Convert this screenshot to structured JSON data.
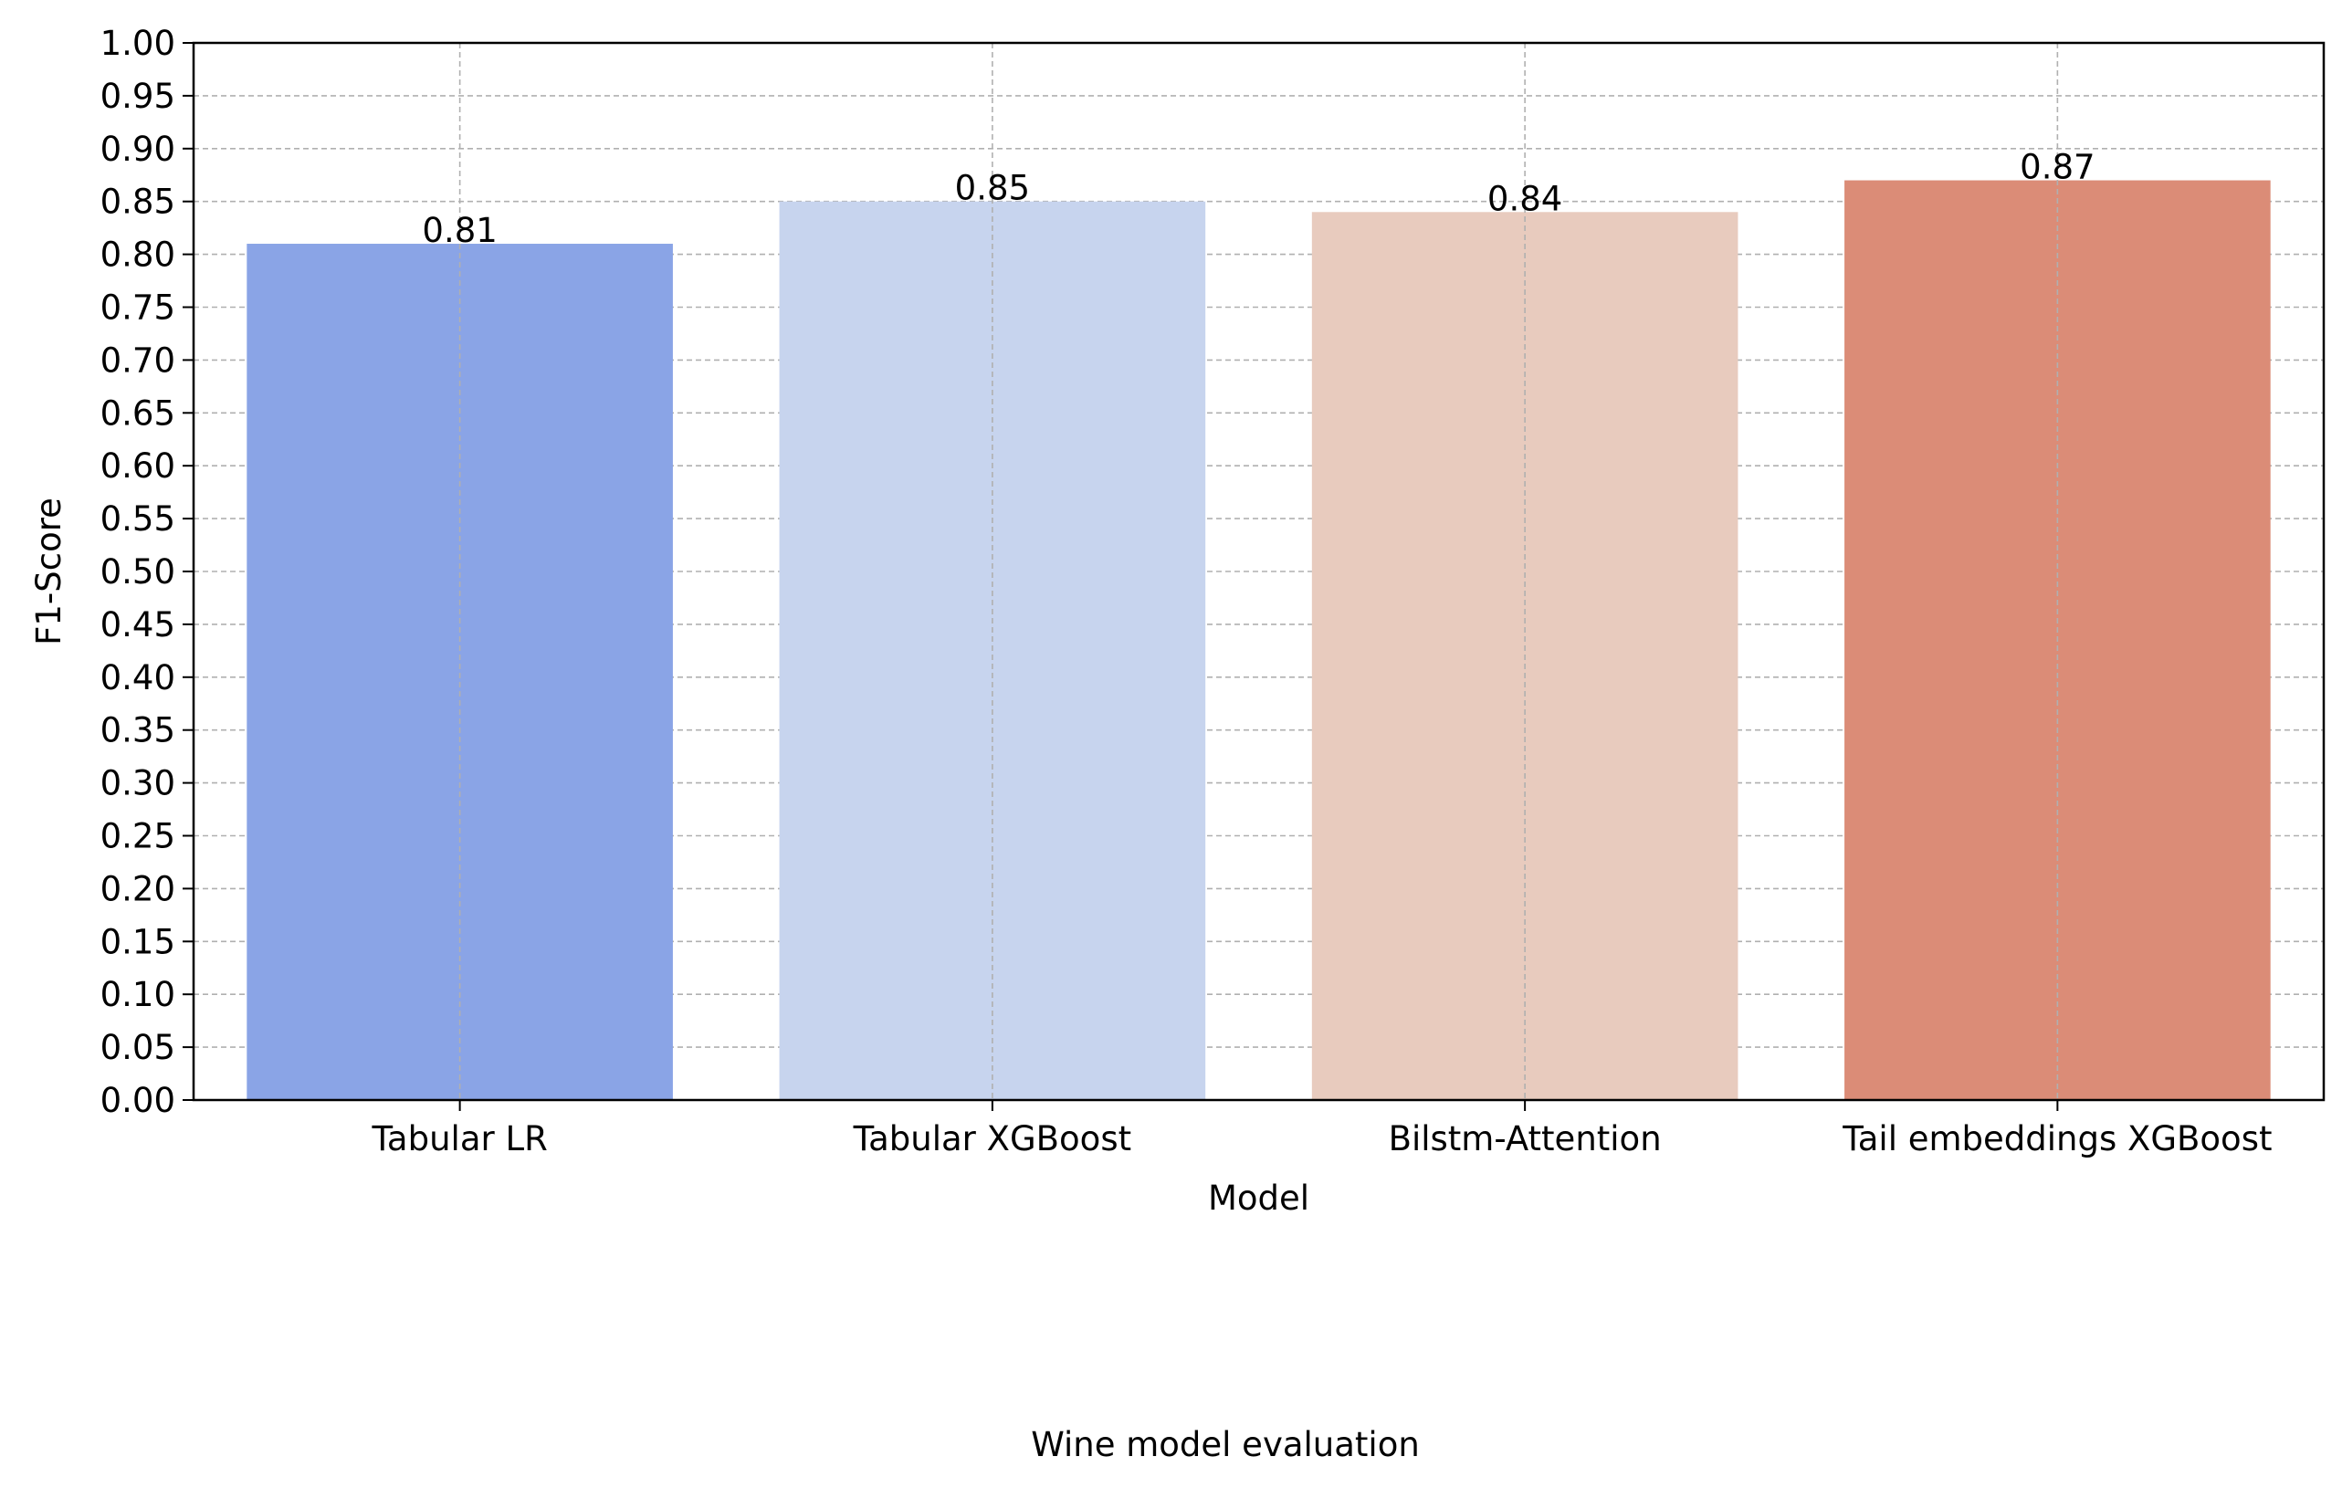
{
  "chart_data": {
    "type": "bar",
    "title": "",
    "caption": "Wine model evaluation",
    "xlabel": "Model",
    "ylabel": "F1-Score",
    "categories": [
      "Tabular LR",
      "Tabular XGBoost",
      "Bilstm-Attention",
      "Tail embeddings XGBoost"
    ],
    "values": [
      0.81,
      0.85,
      0.84,
      0.87
    ],
    "data_labels": [
      "0.81",
      "0.85",
      "0.84",
      "0.87"
    ],
    "colors": [
      "#8aa4e6",
      "#c7d4ee",
      "#e8cbbe",
      "#db8c77"
    ],
    "ylim": [
      0,
      1.0
    ],
    "yticks": [
      0.0,
      0.05,
      0.1,
      0.15,
      0.2,
      0.25,
      0.3,
      0.35,
      0.4,
      0.45,
      0.5,
      0.55,
      0.6,
      0.65,
      0.7,
      0.75,
      0.8,
      0.85,
      0.9,
      0.95,
      1.0
    ],
    "ytick_labels": [
      "0.00",
      "0.05",
      "0.10",
      "0.15",
      "0.20",
      "0.25",
      "0.30",
      "0.35",
      "0.40",
      "0.45",
      "0.50",
      "0.55",
      "0.60",
      "0.65",
      "0.70",
      "0.75",
      "0.80",
      "0.85",
      "0.90",
      "0.95",
      "1.00"
    ],
    "grid": true,
    "legend": "none"
  }
}
